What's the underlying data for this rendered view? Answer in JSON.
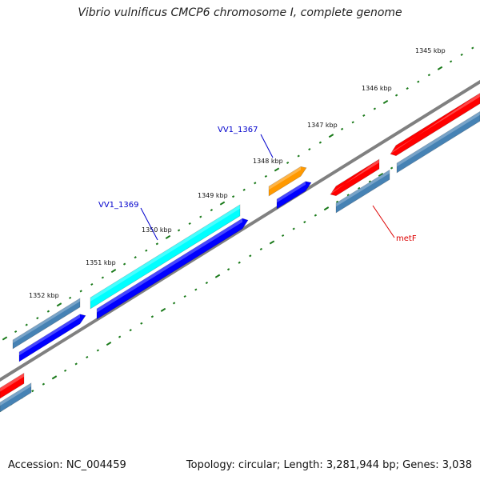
{
  "title": "Vibrio vulnificus CMCP6 chromosome I, complete genome",
  "footer": {
    "accession": "Accession: NC_004459",
    "summary": "Topology: circular; Length: 3,281,944 bp; Genes: 3,038"
  },
  "scale_labels": [
    "1345 kbp",
    "1346 kbp",
    "1347 kbp",
    "1348 kbp",
    "1349 kbp",
    "1350 kbp",
    "1351 kbp",
    "1352 kbp"
  ],
  "gene_labels": {
    "vv1_1367": "VV1_1367",
    "vv1_1369": "VV1_1369",
    "metf": "metF"
  },
  "colors": {
    "backbone": "#808080",
    "tick": "#1a7a1a",
    "red": "#ff0000",
    "steelblue": "#4682b4",
    "blue": "#0000ff",
    "cyan": "#00ffff",
    "orange": "#ff9900",
    "label_blue": "#0000cc",
    "label_red": "#dd0000"
  }
}
